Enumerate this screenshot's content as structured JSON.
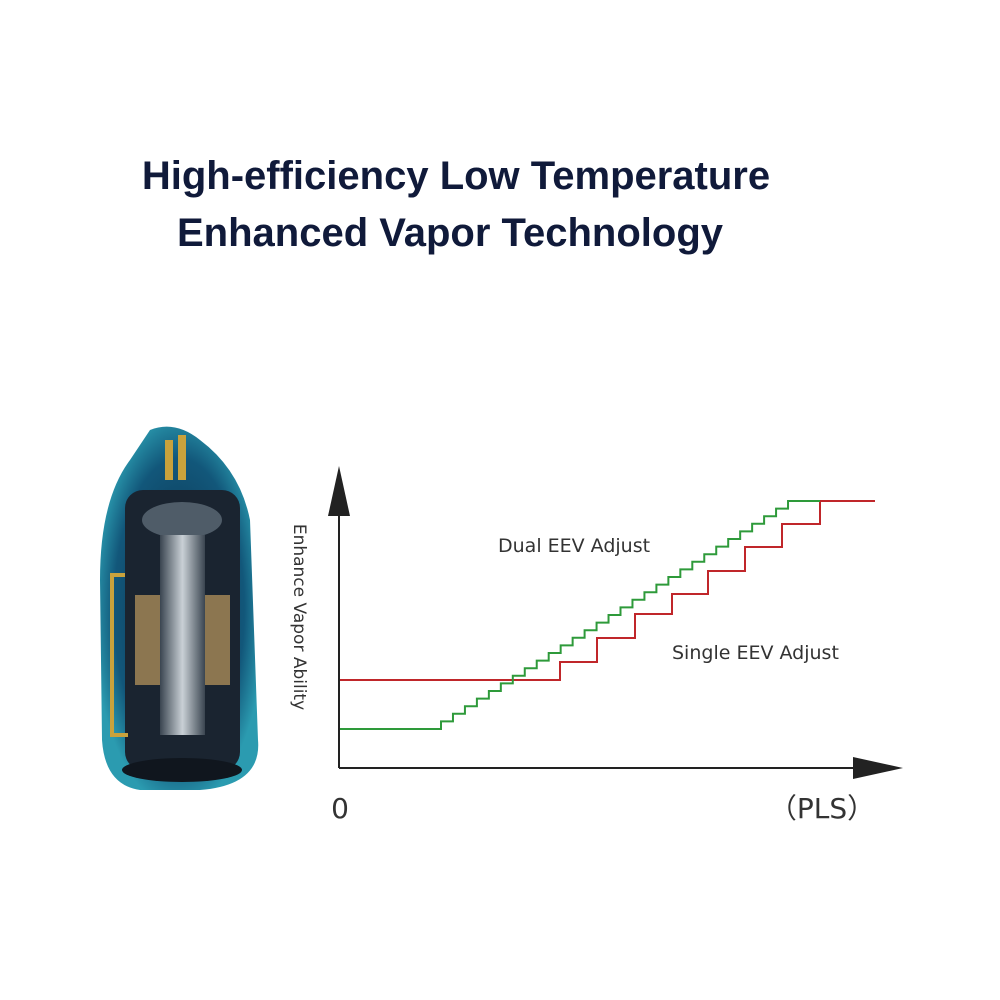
{
  "header": {
    "title": [
      "High-efficiency Low Temperature",
      "Enhanced Vapor Technology"
    ]
  },
  "diagram": {
    "y_axis_label": "Enhance Vapor Ability",
    "x_origin_label": "0",
    "x_axis_label": "（PLS）",
    "curves": [
      {
        "label": "Dual EEV Adjust"
      },
      {
        "label": "Single EEV Adjust"
      }
    ]
  }
}
